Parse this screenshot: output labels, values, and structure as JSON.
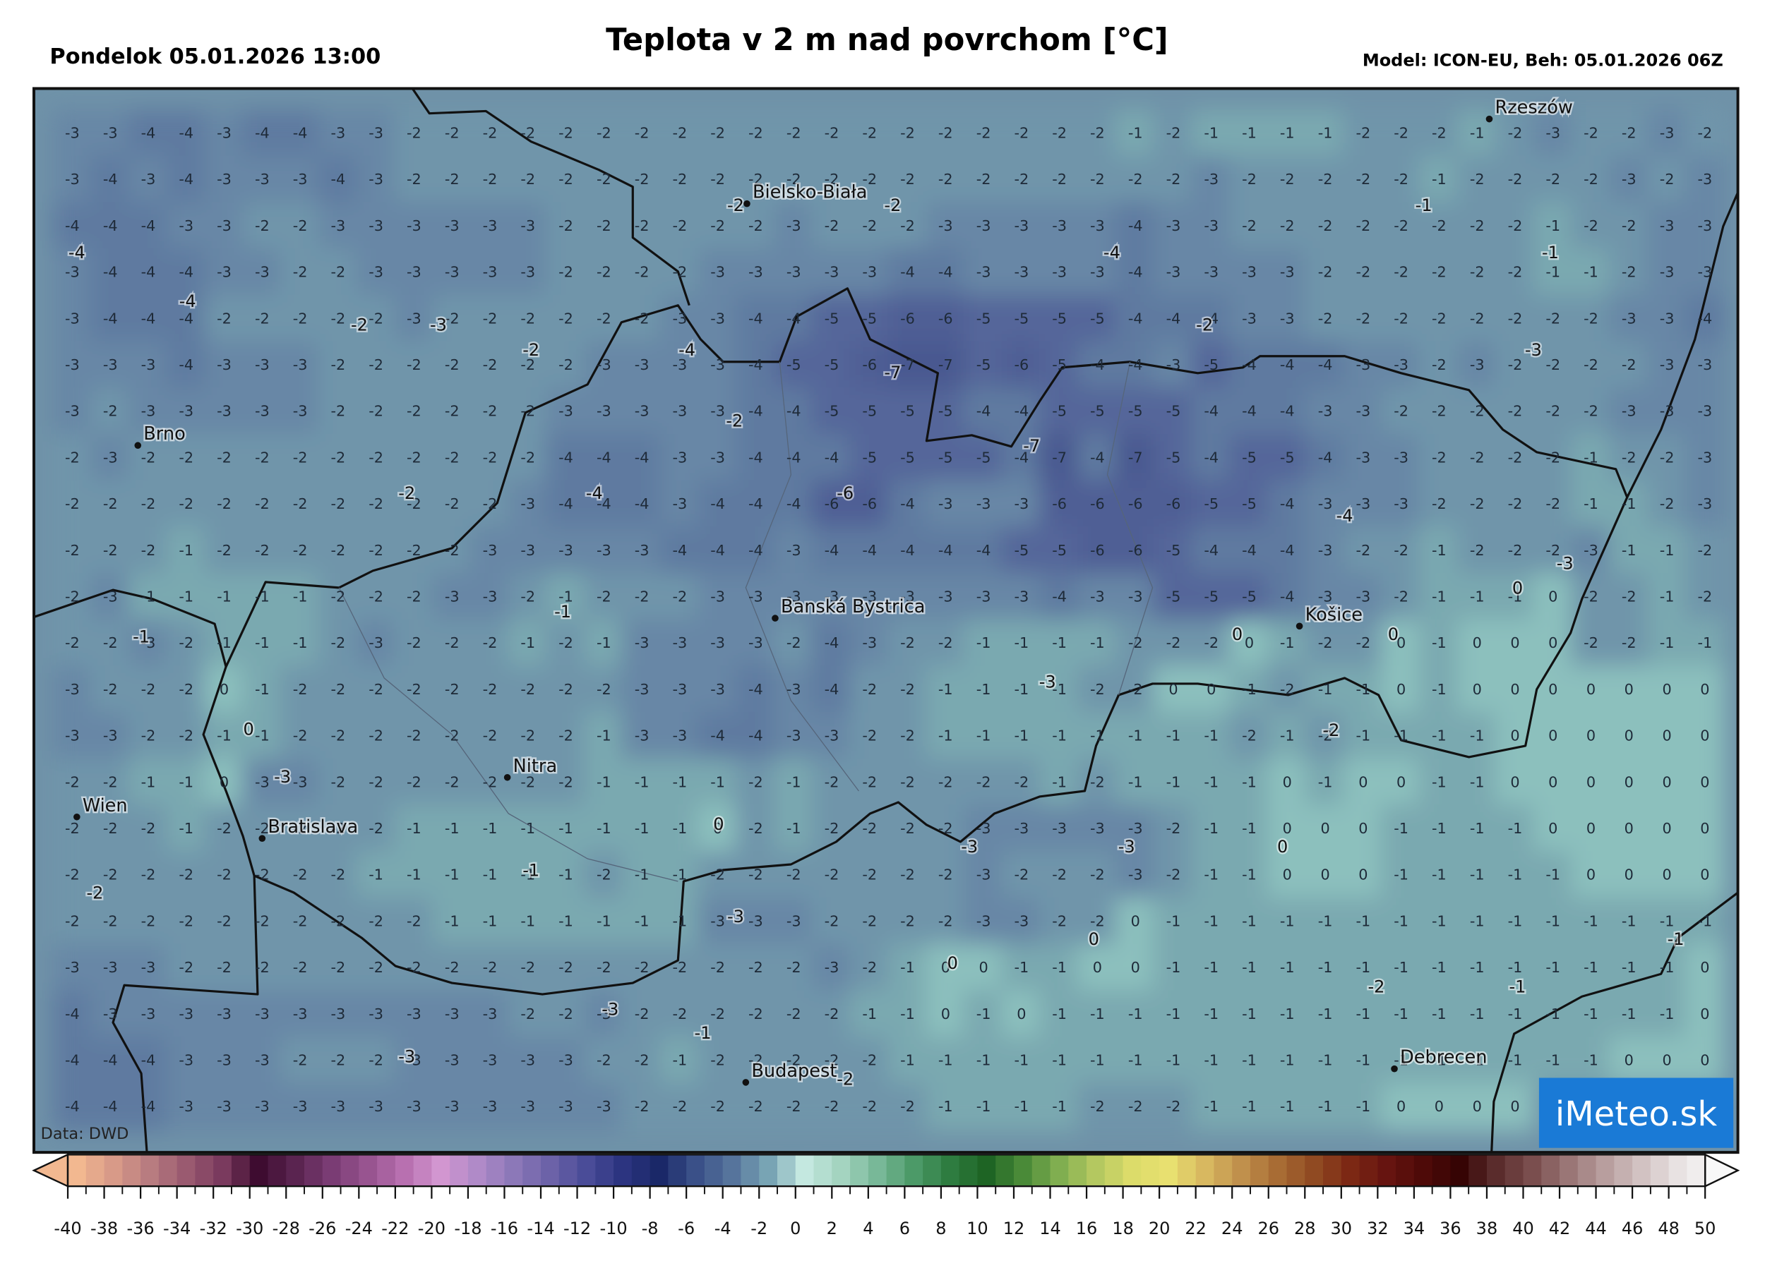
{
  "header": {
    "date": "Pondelok 05.01.2026 13:00",
    "title": "Teplota v 2 m nad povrchom [°C]",
    "model": "Model: ICON-EU, Beh: 05.01.2026 06Z"
  },
  "map": {
    "grid": [
      [
        -3,
        -3,
        -4,
        -4,
        -3,
        -4,
        -4,
        -3,
        -3,
        -2,
        -2,
        -2,
        -2,
        -2,
        -2,
        -2,
        -2,
        -2,
        -2,
        -2,
        -2,
        -2,
        -2,
        -2,
        -2,
        -2,
        -2,
        -2,
        -1,
        -2,
        -1,
        -1,
        -1,
        -1,
        -2,
        -2,
        -2,
        -1,
        -2,
        -3,
        -2,
        -2,
        -3,
        -2
      ],
      [
        -3,
        -4,
        -3,
        -4,
        -3,
        -3,
        -3,
        -4,
        -3,
        -2,
        -2,
        -2,
        -2,
        -2,
        -2,
        -2,
        -2,
        -2,
        -2,
        -2,
        -2,
        -2,
        -2,
        -2,
        -2,
        -2,
        -2,
        -2,
        -2,
        -2,
        -3,
        -2,
        -2,
        -2,
        -2,
        -2,
        -1,
        -2,
        -2,
        -2,
        -2,
        -3,
        -2,
        -3
      ],
      [
        -4,
        -4,
        -4,
        -3,
        -3,
        -2,
        -2,
        -3,
        -3,
        -3,
        -3,
        -3,
        -3,
        -2,
        -2,
        -2,
        -2,
        -2,
        -2,
        -3,
        -2,
        -2,
        -2,
        -3,
        -3,
        -3,
        -3,
        -3,
        -4,
        -3,
        -3,
        -2,
        -2,
        -2,
        -2,
        -2,
        -2,
        -2,
        -2,
        -1,
        -2,
        -2,
        -3,
        -3
      ],
      [
        -3,
        -4,
        -4,
        -4,
        -3,
        -3,
        -2,
        -2,
        -3,
        -3,
        -3,
        -3,
        -3,
        -2,
        -2,
        -2,
        -2,
        -3,
        -3,
        -3,
        -3,
        -3,
        -4,
        -4,
        -3,
        -3,
        -3,
        -3,
        -4,
        -3,
        -3,
        -3,
        -3,
        -2,
        -2,
        -2,
        -2,
        -2,
        -2,
        -1,
        -1,
        -2,
        -3,
        -3
      ],
      [
        -3,
        -4,
        -4,
        -4,
        -2,
        -2,
        -2,
        -2,
        -2,
        -3,
        -2,
        -2,
        -2,
        -2,
        -2,
        -2,
        -3,
        -3,
        -4,
        -4,
        -5,
        -5,
        -6,
        -6,
        -5,
        -5,
        -5,
        -5,
        -4,
        -4,
        -4,
        -3,
        -3,
        -2,
        -2,
        -2,
        -2,
        -2,
        -2,
        -2,
        -2,
        -3,
        -3,
        -4
      ],
      [
        -3,
        -3,
        -3,
        -4,
        -3,
        -3,
        -3,
        -2,
        -2,
        -2,
        -2,
        -2,
        -2,
        -2,
        -3,
        -3,
        -3,
        -3,
        -4,
        -5,
        -5,
        -6,
        -7,
        -7,
        -5,
        -6,
        -5,
        -4,
        -4,
        -3,
        -5,
        -4,
        -4,
        -4,
        -3,
        -3,
        -2,
        -3,
        -2,
        -2,
        -2,
        -2,
        -3,
        -3
      ],
      [
        -3,
        -2,
        -3,
        -3,
        -3,
        -3,
        -3,
        -2,
        -2,
        -2,
        -2,
        -2,
        -2,
        -3,
        -3,
        -3,
        -3,
        -3,
        -4,
        -4,
        -5,
        -5,
        -5,
        -5,
        -4,
        -4,
        -5,
        -5,
        -5,
        -5,
        -4,
        -4,
        -4,
        -3,
        -3,
        -2,
        -2,
        -2,
        -2,
        -2,
        -2,
        -3,
        -3,
        -3
      ],
      [
        -2,
        -3,
        -2,
        -2,
        -2,
        -2,
        -2,
        -2,
        -2,
        -2,
        -2,
        -2,
        -2,
        -4,
        -4,
        -4,
        -3,
        -3,
        -4,
        -4,
        -4,
        -5,
        -5,
        -5,
        -5,
        -4,
        -7,
        -4,
        -7,
        -5,
        -4,
        -5,
        -5,
        -4,
        -3,
        -3,
        -2,
        -2,
        -2,
        -2,
        -1,
        -2,
        -2,
        -3
      ],
      [
        -2,
        -2,
        -2,
        -2,
        -2,
        -2,
        -2,
        -2,
        -2,
        -2,
        -2,
        -2,
        -3,
        -4,
        -4,
        -4,
        -3,
        -4,
        -4,
        -4,
        -6,
        -6,
        -4,
        -3,
        -3,
        -3,
        -6,
        -6,
        -6,
        -6,
        -5,
        -5,
        -4,
        -3,
        -3,
        -3,
        -2,
        -2,
        -2,
        -2,
        -1,
        -1,
        -2,
        -3
      ],
      [
        -2,
        -2,
        -2,
        -1,
        -2,
        -2,
        -2,
        -2,
        -2,
        -2,
        -2,
        -3,
        -3,
        -3,
        -3,
        -3,
        -4,
        -4,
        -4,
        -3,
        -4,
        -4,
        -4,
        -4,
        -4,
        -5,
        -5,
        -6,
        -6,
        -5,
        -4,
        -4,
        -4,
        -3,
        -2,
        -2,
        -1,
        -2,
        -2,
        -2,
        -3,
        -1,
        -1,
        -2
      ],
      [
        -2,
        -3,
        -1,
        -1,
        -1,
        -1,
        -1,
        -2,
        -2,
        -2,
        -3,
        -3,
        -2,
        -1,
        -2,
        -2,
        -2,
        -3,
        -3,
        -3,
        -3,
        -3,
        -3,
        -3,
        -3,
        -3,
        -4,
        -3,
        -3,
        -5,
        -5,
        -5,
        -4,
        -3,
        -3,
        -2,
        -1,
        -1,
        -1,
        0,
        -2,
        -2,
        -1,
        -2
      ],
      [
        -2,
        -2,
        -3,
        -2,
        -1,
        -1,
        -1,
        -2,
        -3,
        -2,
        -2,
        -2,
        -1,
        -2,
        -1,
        -3,
        -3,
        -3,
        -3,
        -2,
        -4,
        -3,
        -2,
        -2,
        -1,
        -1,
        -1,
        -1,
        -2,
        -2,
        -2,
        0,
        -1,
        -2,
        -2,
        0,
        -1,
        0,
        0,
        0,
        -2,
        -2,
        -1,
        -1
      ],
      [
        -3,
        -2,
        -2,
        -2,
        0,
        -1,
        -2,
        -2,
        -2,
        -2,
        -2,
        -2,
        -2,
        -2,
        -2,
        -3,
        -3,
        -3,
        -4,
        -3,
        -4,
        -2,
        -2,
        -1,
        -1,
        -1,
        -1,
        -2,
        -2,
        0,
        0,
        -1,
        -2,
        -1,
        -1,
        0,
        -1,
        0,
        0,
        0,
        0,
        0,
        0,
        0
      ],
      [
        -3,
        -3,
        -2,
        -2,
        -1,
        -1,
        -2,
        -2,
        -2,
        -2,
        -2,
        -2,
        -2,
        -2,
        -1,
        -3,
        -3,
        -4,
        -4,
        -3,
        -3,
        -2,
        -2,
        -1,
        -1,
        -1,
        -1,
        -1,
        -1,
        -1,
        -1,
        -2,
        -1,
        -2,
        -1,
        -1,
        -1,
        -1,
        0,
        0,
        0,
        0,
        0,
        0
      ],
      [
        -2,
        -2,
        -1,
        -1,
        0,
        -3,
        -3,
        -2,
        -2,
        -2,
        -2,
        -2,
        -2,
        -2,
        -1,
        -1,
        -1,
        -1,
        -2,
        -1,
        -2,
        -2,
        -2,
        -2,
        -2,
        -2,
        -1,
        -2,
        -1,
        -1,
        -1,
        -1,
        0,
        -1,
        0,
        0,
        -1,
        -1,
        0,
        0,
        0,
        0,
        0,
        0
      ],
      [
        -2,
        -2,
        -2,
        -1,
        -2,
        -2,
        -2,
        -2,
        -2,
        -1,
        -1,
        -1,
        -1,
        -1,
        -1,
        -1,
        -1,
        0,
        -2,
        -1,
        -2,
        -2,
        -2,
        -2,
        -3,
        -3,
        -3,
        -3,
        -3,
        -2,
        -1,
        -1,
        0,
        0,
        0,
        -1,
        -1,
        -1,
        -1,
        0,
        0,
        0,
        0,
        0
      ],
      [
        -2,
        -2,
        -2,
        -2,
        -2,
        -2,
        -2,
        -2,
        -1,
        -1,
        -1,
        -1,
        -1,
        -1,
        -2,
        -1,
        -1,
        -2,
        -2,
        -2,
        -2,
        -2,
        -2,
        -2,
        -3,
        -2,
        -2,
        -2,
        -3,
        -2,
        -1,
        -1,
        0,
        0,
        0,
        -1,
        -1,
        -1,
        -1,
        -1,
        0,
        0,
        0,
        0
      ],
      [
        -2,
        -2,
        -2,
        -2,
        -2,
        -2,
        -2,
        -2,
        -2,
        -2,
        -1,
        -1,
        -1,
        -1,
        -1,
        -1,
        -1,
        -3,
        -3,
        -3,
        -2,
        -2,
        -2,
        -2,
        -3,
        -3,
        -2,
        -2,
        0,
        -1,
        -1,
        -1,
        -1,
        -1,
        -1,
        -1,
        -1,
        -1,
        -1,
        -1,
        -1,
        -1,
        -1,
        -1
      ],
      [
        -3,
        -3,
        -3,
        -2,
        -2,
        -2,
        -2,
        -2,
        -2,
        -2,
        -2,
        -2,
        -2,
        -2,
        -2,
        -2,
        -2,
        -2,
        -2,
        -2,
        -3,
        -2,
        -1,
        0,
        0,
        -1,
        -1,
        0,
        0,
        -1,
        -1,
        -1,
        -1,
        -1,
        -1,
        -1,
        -1,
        -1,
        -1,
        -1,
        -1,
        -1,
        -1,
        0
      ],
      [
        -4,
        -3,
        -3,
        -3,
        -3,
        -3,
        -3,
        -3,
        -3,
        -3,
        -3,
        -3,
        -2,
        -2,
        -3,
        -2,
        -2,
        -2,
        -2,
        -2,
        -2,
        -1,
        -1,
        0,
        -1,
        0,
        -1,
        -1,
        -1,
        -1,
        -1,
        -1,
        -1,
        -1,
        -1,
        -1,
        -1,
        -1,
        -1,
        -1,
        -1,
        -1,
        -1,
        0
      ],
      [
        -4,
        -4,
        -4,
        -3,
        -3,
        -3,
        -2,
        -2,
        -2,
        -3,
        -3,
        -3,
        -3,
        -3,
        -2,
        -2,
        -1,
        -2,
        -2,
        -2,
        -2,
        -2,
        -1,
        -1,
        -1,
        -1,
        -1,
        -1,
        -1,
        -1,
        -1,
        -1,
        -1,
        -1,
        -1,
        -1,
        -1,
        -1,
        -1,
        -1,
        -1,
        0,
        0,
        0
      ],
      [
        -4,
        -4,
        -4,
        -3,
        -3,
        -3,
        -3,
        -3,
        -3,
        -3,
        -3,
        -3,
        -3,
        -3,
        -3,
        -2,
        -2,
        -2,
        -2,
        -2,
        -2,
        -2,
        -2,
        -1,
        -1,
        -1,
        -1,
        -2,
        -2,
        -2,
        -1,
        -1,
        -1,
        -1,
        -1,
        0,
        0,
        0,
        0,
        null,
        null,
        null,
        null,
        null
      ]
    ],
    "extremes": [
      -4,
      -4,
      -2,
      -3,
      -2,
      -4,
      -7,
      -2,
      -2,
      -4,
      -6,
      -7,
      -4,
      -2,
      -2,
      -2,
      -1,
      -1,
      -3,
      -4,
      -3,
      0,
      0,
      0,
      -1,
      -3,
      -1,
      -2,
      0,
      -3,
      0,
      -3,
      -3,
      0,
      -1,
      -2,
      -3,
      0,
      0,
      -1,
      -2,
      -1,
      -3,
      -1,
      -3,
      -2
    ],
    "cities": [
      "Rzeszów",
      "Bielsko-Biała",
      "Brno",
      "Banská Bystrica",
      "Košice",
      "Nitra",
      "Wien",
      "Bratislava",
      "Budapest",
      "Debrecen"
    ],
    "source": "Data: DWD",
    "logo": "iMeteo.sk"
  },
  "colorbar": {
    "ticks": [
      -40,
      -38,
      -36,
      -34,
      -32,
      -30,
      -28,
      -26,
      -24,
      -22,
      -20,
      -18,
      -16,
      -14,
      -12,
      -10,
      -8,
      -6,
      -4,
      -2,
      0,
      2,
      4,
      6,
      8,
      10,
      12,
      14,
      16,
      18,
      20,
      22,
      24,
      26,
      28,
      30,
      32,
      34,
      36,
      38,
      40,
      42,
      44,
      46,
      48,
      50
    ],
    "colors": [
      "#f2b890",
      "#d89a88",
      "#b87c80",
      "#9a5a70",
      "#7a3a5e",
      "#3e0c30",
      "#5a2450",
      "#7a3c74",
      "#985490",
      "#b870b0",
      "#d296d0",
      "#b08ac8",
      "#8c78b8",
      "#6c62a8",
      "#4a4c98",
      "#2c3480",
      "#1a2868",
      "#3a5088",
      "#56749c",
      "#78a4b4",
      "#c4e8e0",
      "#a4d4c0",
      "#78b898",
      "#4c9a68",
      "#2e7c40",
      "#1e6424",
      "#4a8a38",
      "#80ae50",
      "#b4c860",
      "#dcdc6a",
      "#e8e070",
      "#d8b860",
      "#c0904c",
      "#a86c34",
      "#904a22",
      "#7c2814",
      "#661410",
      "#4e0a08",
      "#360404",
      "#5a2c2c",
      "#7a4e4e",
      "#9a7676",
      "#b89e9e",
      "#d2c2c2",
      "#e8e2e2",
      "#f8f8f8"
    ]
  }
}
